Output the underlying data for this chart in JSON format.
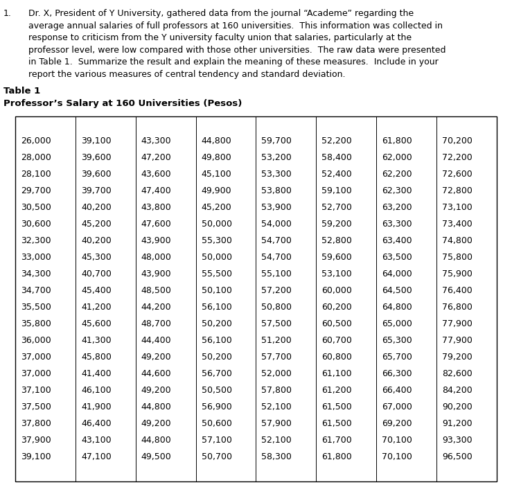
{
  "paragraph_number": "1.",
  "para_lines": [
    "Dr. X, President of Y University, gathered data from the journal “Academe” regarding the",
    "average annual salaries of full professors at 160 universities.  This information was collected in",
    "response to criticism from the Y university faculty union that salaries, particularly at the",
    "professor level, were low compared with those other universities.  The raw data were presented",
    "in Table 1.  Summarize the result and explain the meaning of these measures.  Include in your",
    "report the various measures of central tendency and standard deviation."
  ],
  "table_label": "Table 1",
  "table_title": "Professor’s Salary at 160 Universities (Pesos)",
  "table_data": [
    [
      "26,000",
      "39,100",
      "43,300",
      "44,800",
      "59,700",
      "52,200",
      "61,800",
      "70,200"
    ],
    [
      "28,000",
      "39,600",
      "47,200",
      "49,800",
      "53,200",
      "58,400",
      "62,000",
      "72,200"
    ],
    [
      "28,100",
      "39,600",
      "43,600",
      "45,100",
      "53,300",
      "52,400",
      "62,200",
      "72,600"
    ],
    [
      "29,700",
      "39,700",
      "47,400",
      "49,900",
      "53,800",
      "59,100",
      "62,300",
      "72,800"
    ],
    [
      "30,500",
      "40,200",
      "43,800",
      "45,200",
      "53,900",
      "52,700",
      "63,200",
      "73,100"
    ],
    [
      "30,600",
      "45,200",
      "47,600",
      "50,000",
      "54,000",
      "59,200",
      "63,300",
      "73,400"
    ],
    [
      "32,300",
      "40,200",
      "43,900",
      "55,300",
      "54,700",
      "52,800",
      "63,400",
      "74,800"
    ],
    [
      "33,000",
      "45,300",
      "48,000",
      "50,000",
      "54,700",
      "59,600",
      "63,500",
      "75,800"
    ],
    [
      "34,300",
      "40,700",
      "43,900",
      "55,500",
      "55,100",
      "53,100",
      "64,000",
      "75,900"
    ],
    [
      "34,700",
      "45,400",
      "48,500",
      "50,100",
      "57,200",
      "60,000",
      "64,500",
      "76,400"
    ],
    [
      "35,500",
      "41,200",
      "44,200",
      "56,100",
      "50,800",
      "60,200",
      "64,800",
      "76,800"
    ],
    [
      "35,800",
      "45,600",
      "48,700",
      "50,200",
      "57,500",
      "60,500",
      "65,000",
      "77,900"
    ],
    [
      "36,000",
      "41,300",
      "44,400",
      "56,100",
      "51,200",
      "60,700",
      "65,300",
      "77,900"
    ],
    [
      "37,000",
      "45,800",
      "49,200",
      "50,200",
      "57,700",
      "60,800",
      "65,700",
      "79,200"
    ],
    [
      "37,000",
      "41,400",
      "44,600",
      "56,700",
      "52,000",
      "61,100",
      "66,300",
      "82,600"
    ],
    [
      "37,100",
      "46,100",
      "49,200",
      "50,500",
      "57,800",
      "61,200",
      "66,400",
      "84,200"
    ],
    [
      "37,500",
      "41,900",
      "44,800",
      "56,900",
      "52,100",
      "61,500",
      "67,000",
      "90,200"
    ],
    [
      "37,800",
      "46,400",
      "49,200",
      "50,600",
      "57,900",
      "61,500",
      "69,200",
      "91,200"
    ],
    [
      "37,900",
      "43,100",
      "44,800",
      "57,100",
      "52,100",
      "61,700",
      "70,100",
      "93,300"
    ],
    [
      "39,100",
      "47,100",
      "49,500",
      "50,700",
      "58,300",
      "61,800",
      "70,100",
      "96,500"
    ]
  ],
  "bg_color": "#ffffff",
  "text_color": "#000000",
  "para_fontsize": 9.0,
  "bold_fontsize": 9.5,
  "cell_fontsize": 9.0
}
